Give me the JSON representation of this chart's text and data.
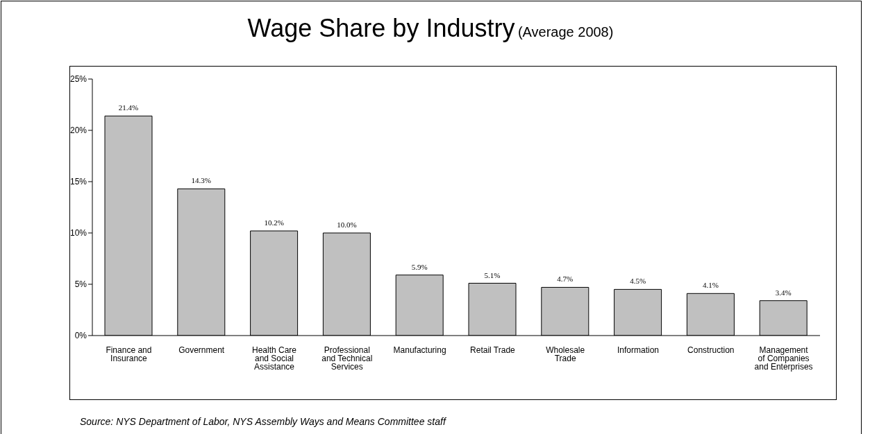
{
  "chart_data": {
    "type": "bar",
    "title": "Wage Share by Industry",
    "subtitle": "(Average 2008)",
    "categories": [
      "Finance and Insurance",
      "Government",
      "Health Care and Social Assistance",
      "Professional and Technical Services",
      "Manufacturing",
      "Retail Trade",
      "Wholesale Trade",
      "Information",
      "Construction",
      "Management of Companies and Enterprises"
    ],
    "values": [
      21.4,
      14.3,
      10.2,
      10.0,
      5.9,
      5.1,
      4.7,
      4.5,
      4.1,
      3.4
    ],
    "value_labels": [
      "21.4%",
      "14.3%",
      "10.2%",
      "10.0%",
      "5.9%",
      "5.1%",
      "4.7%",
      "4.5%",
      "4.1%",
      "3.4%"
    ],
    "color": "#c0c0c0",
    "ylim": [
      0,
      25
    ],
    "yticks": [
      {
        "value": 0,
        "label": "0%"
      },
      {
        "value": 5,
        "label": "5%"
      },
      {
        "value": 10,
        "label": "10%"
      },
      {
        "value": 15,
        "label": "15%"
      },
      {
        "value": 20,
        "label": "20%"
      },
      {
        "value": 25,
        "label": "25%"
      }
    ],
    "grid": false,
    "legend": false,
    "annotations": [
      "Source: NYS Department of Labor, NYS Assembly Ways and Means Committee staff"
    ]
  }
}
